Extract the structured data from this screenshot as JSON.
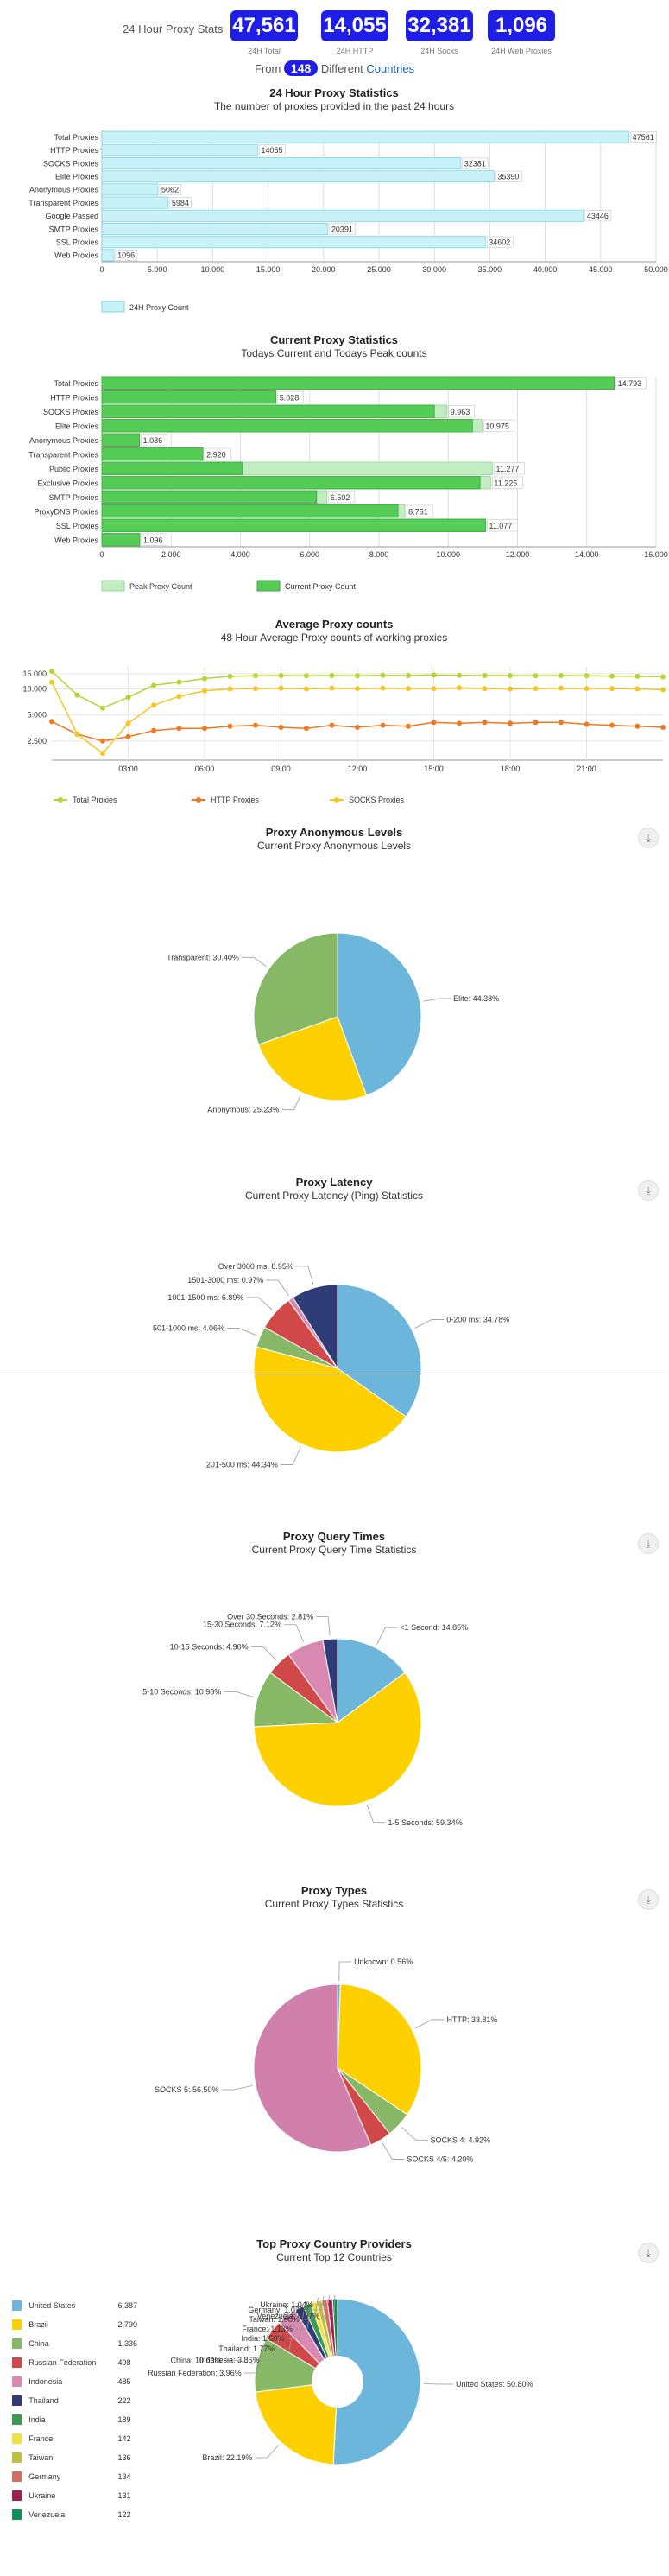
{
  "stats": {
    "label": "24 Hour Proxy Stats",
    "boxes": [
      {
        "value": "47,561",
        "sub": "24H Total"
      },
      {
        "value": "14,055",
        "sub": "24H HTTP"
      },
      {
        "value": "32,381",
        "sub": "24H Socks"
      },
      {
        "value": "1,096",
        "sub": "24H Web Proxies"
      }
    ],
    "from_prefix": "From",
    "countries_count": "148",
    "different": "Different",
    "countries_link": "Countries"
  },
  "chart_data": [
    {
      "type": "bar",
      "title": "24 Hour Proxy Statistics",
      "subtitle": "The number of proxies provided in the past 24 hours",
      "categories": [
        "Total Proxies",
        "HTTP Proxies",
        "SOCKS Proxies",
        "Elite Proxies",
        "Anonymous Proxies",
        "Transparent Proxies",
        "Google Passed",
        "SMTP Proxies",
        "SSL Proxies",
        "Web Proxies"
      ],
      "series": [
        {
          "name": "24H Proxy Count",
          "values": [
            47561,
            14055,
            32381,
            35390,
            5062,
            5984,
            43446,
            20391,
            34602,
            1096
          ],
          "color": "#c8f2f8"
        }
      ],
      "ticks": [
        "0",
        "5.000",
        "10.000",
        "15.000",
        "20.000",
        "25.000",
        "30.000",
        "35.000",
        "40.000",
        "45.000",
        "50.000"
      ],
      "value_labels": [
        "47561",
        "14055",
        "32381",
        "35390",
        "5062",
        "5984",
        "43446",
        "20391",
        "34602",
        "1096"
      ],
      "xlim": [
        0,
        50000
      ]
    },
    {
      "type": "bar",
      "title": "Current Proxy Statistics",
      "subtitle": "Todays Current and Todays Peak counts",
      "categories": [
        "Total Proxies",
        "HTTP Proxies",
        "SOCKS Proxies",
        "Elite Proxies",
        "Anonymous Proxies",
        "Transparent Proxies",
        "Public Proxies",
        "Exclusive Proxies",
        "SMTP Proxies",
        "ProxyDNS Proxies",
        "SSL Proxies",
        "Web Proxies"
      ],
      "series": [
        {
          "name": "Peak Proxy Count",
          "values": [
            14793,
            5028,
            9963,
            10975,
            1086,
            2920,
            11277,
            11225,
            6502,
            8751,
            11077,
            1096
          ],
          "color": "#c2ecc2"
        },
        {
          "name": "Current Proxy Count",
          "values": [
            14793,
            5028,
            9600,
            10700,
            1086,
            2920,
            4050,
            10920,
            6200,
            8550,
            11077,
            1096
          ],
          "color": "#55cc55"
        }
      ],
      "ticks": [
        "0",
        "2.000",
        "4.000",
        "6.000",
        "8.000",
        "10.000",
        "12.000",
        "14.000",
        "16.000"
      ],
      "value_labels": [
        "14.793",
        "5.028",
        "9.963",
        "10.975",
        "1.086",
        "2.920",
        "11.277",
        "11.225",
        "6.502",
        "8.751",
        "11.077",
        "1.096"
      ],
      "xlim": [
        0,
        16000
      ]
    },
    {
      "type": "line",
      "title": "Average Proxy counts",
      "subtitle": "48 Hour Average Proxy counts of working proxies",
      "x_ticks": [
        "03:00",
        "06:00",
        "09:00",
        "12:00",
        "15:00",
        "18:00",
        "21:00"
      ],
      "y_ticks": [
        "15.000",
        "10.000",
        "5.000",
        "2.500"
      ],
      "y_tick_values": [
        15000,
        10000,
        5000,
        2500
      ],
      "ylim": [
        1500,
        18000
      ],
      "x": [
        0,
        1,
        2,
        3,
        4,
        5,
        6,
        7,
        8,
        9,
        10,
        11,
        12,
        13,
        14,
        15,
        16,
        17,
        18,
        19,
        20,
        21,
        22,
        23,
        24
      ],
      "series": [
        {
          "name": "Total Proxies",
          "color": "#b8d433",
          "values": [
            16000,
            8500,
            6000,
            8000,
            11000,
            12000,
            13200,
            14000,
            14200,
            14300,
            14200,
            14300,
            14200,
            14400,
            14300,
            14500,
            14400,
            14300,
            14300,
            14200,
            14300,
            14200,
            14100,
            14000,
            13800
          ]
        },
        {
          "name": "HTTP Proxies",
          "color": "#f07820",
          "values": [
            4200,
            3000,
            2500,
            2800,
            3300,
            3500,
            3500,
            3700,
            3800,
            3600,
            3500,
            3800,
            3600,
            3800,
            3700,
            4100,
            4000,
            4100,
            4000,
            4100,
            4100,
            3900,
            3800,
            3700,
            3600
          ]
        },
        {
          "name": "SOCKS Proxies",
          "color": "#f7c520",
          "values": [
            12000,
            3000,
            1800,
            4000,
            6500,
            8200,
            9500,
            10000,
            10100,
            10200,
            10000,
            10200,
            10100,
            10200,
            10100,
            10100,
            10300,
            10100,
            10000,
            10100,
            10200,
            10100,
            10100,
            10000,
            9800
          ]
        }
      ]
    },
    {
      "type": "pie",
      "title": "Proxy Anonymous Levels",
      "subtitle": "Current Proxy Anonymous Levels",
      "slices": [
        {
          "label": "Elite: 44.38%",
          "value": 44.38,
          "color": "#6cb6dc"
        },
        {
          "label": "Anonymous: 25.23%",
          "value": 25.23,
          "color": "#ffd000"
        },
        {
          "label": "Transparent: 30.40%",
          "value": 30.4,
          "color": "#86b866"
        }
      ]
    },
    {
      "type": "pie",
      "title": "Proxy Latency",
      "subtitle": "Current Proxy Latency (Ping) Statistics",
      "slices": [
        {
          "label": "0-200 ms: 34.78%",
          "value": 34.78,
          "color": "#6cb6dc"
        },
        {
          "label": "201-500 ms: 44.34%",
          "value": 44.34,
          "color": "#ffd000"
        },
        {
          "label": "501-1000 ms: 4.06%",
          "value": 4.06,
          "color": "#86b866"
        },
        {
          "label": "1001-1500 ms: 6.89%",
          "value": 6.89,
          "color": "#d04848"
        },
        {
          "label": "1501-3000 ms: 0.97%",
          "value": 0.97,
          "color": "#d988b2"
        },
        {
          "label": "Over 3000 ms: 8.95%",
          "value": 8.95,
          "color": "#2e3c78"
        }
      ]
    },
    {
      "type": "pie",
      "title": "Proxy Query Times",
      "subtitle": "Current Proxy Query Time Statistics",
      "slices": [
        {
          "label": "<1 Second: 14.85%",
          "value": 14.85,
          "color": "#6cb6dc"
        },
        {
          "label": "1-5 Seconds: 59.34%",
          "value": 59.34,
          "color": "#ffd000"
        },
        {
          "label": "5-10 Seconds: 10.98%",
          "value": 10.98,
          "color": "#86b866"
        },
        {
          "label": "10-15 Seconds: 4.90%",
          "value": 4.9,
          "color": "#d04848"
        },
        {
          "label": "15-30 Seconds: 7.12%",
          "value": 7.12,
          "color": "#d988b2"
        },
        {
          "label": "Over 30 Seconds: 2.81%",
          "value": 2.81,
          "color": "#2e3c78"
        }
      ]
    },
    {
      "type": "pie",
      "title": "Proxy Types",
      "subtitle": "Current Proxy Types Statistics",
      "slices": [
        {
          "label": "Unknown: 0.56%",
          "value": 0.56,
          "color": "#6cb6dc"
        },
        {
          "label": "HTTP: 33.81%",
          "value": 33.81,
          "color": "#ffd000"
        },
        {
          "label": "SOCKS 4: 4.92%",
          "value": 4.92,
          "color": "#86b866"
        },
        {
          "label": "SOCKS 4/5: 4.20%",
          "value": 4.2,
          "color": "#d04848"
        },
        {
          "label": "SOCKS 5: 56.50%",
          "value": 56.5,
          "color": "#d080aa"
        }
      ]
    },
    {
      "type": "pie",
      "title": "Top Proxy Country Providers",
      "subtitle": "Current Top 12 Countries",
      "slices": [
        {
          "label": "United States: 50.80%",
          "value": 50.8,
          "color": "#6cb6dc"
        },
        {
          "label": "Brazil: 22.19%",
          "value": 22.19,
          "color": "#ffd000"
        },
        {
          "label": "China: 10.63%",
          "value": 10.63,
          "color": "#86b866"
        },
        {
          "label": "Russian Federation: 3.96%",
          "value": 3.96,
          "color": "#d04848"
        },
        {
          "label": "Indonesia: 3.86%",
          "value": 3.86,
          "color": "#d988b2"
        },
        {
          "label": "Thailand: 1.77%",
          "value": 1.77,
          "color": "#2e3c78"
        },
        {
          "label": "India: 1.50%",
          "value": 1.5,
          "color": "#3a9a50"
        },
        {
          "label": "France: 1.13%",
          "value": 1.13,
          "color": "#f0e040"
        },
        {
          "label": "Taiwan: 1.08%",
          "value": 1.08,
          "color": "#bfbf40"
        },
        {
          "label": "Germany: 1.07%",
          "value": 1.07,
          "color": "#d07060"
        },
        {
          "label": "Ukraine: 1.04%",
          "value": 1.04,
          "color": "#a02050"
        },
        {
          "label": "Venezuela: 0.97%",
          "value": 0.97,
          "color": "#10905a"
        }
      ]
    }
  ],
  "country_list": [
    {
      "name": "United States",
      "count": "6,387",
      "color": "#6cb6dc"
    },
    {
      "name": "Brazil",
      "count": "2,790",
      "color": "#ffd000"
    },
    {
      "name": "China",
      "count": "1,336",
      "color": "#86b866"
    },
    {
      "name": "Russian Federation",
      "count": "498",
      "color": "#d04848"
    },
    {
      "name": "Indonesia",
      "count": "485",
      "color": "#d988b2"
    },
    {
      "name": "Thailand",
      "count": "222",
      "color": "#2e3c78"
    },
    {
      "name": "India",
      "count": "189",
      "color": "#3a9a50"
    },
    {
      "name": "France",
      "count": "142",
      "color": "#f0e040"
    },
    {
      "name": "Taiwan",
      "count": "136",
      "color": "#bfbf40"
    },
    {
      "name": "Germany",
      "count": "134",
      "color": "#d07060"
    },
    {
      "name": "Ukraine",
      "count": "131",
      "color": "#a02050"
    },
    {
      "name": "Venezuela",
      "count": "122",
      "color": "#10905a"
    }
  ]
}
